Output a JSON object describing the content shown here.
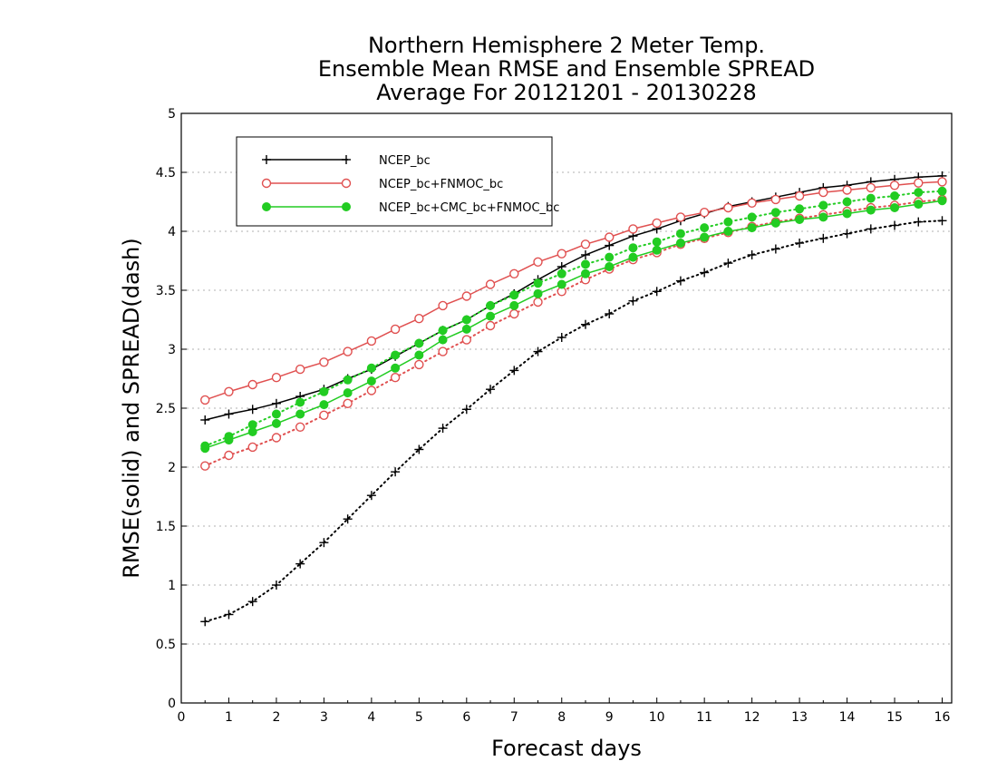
{
  "chart_data": {
    "type": "line",
    "title": [
      "Northern Hemisphere 2 Meter Temp.",
      "Ensemble Mean RMSE and Ensemble SPREAD",
      "Average For 20121201 - 20130228"
    ],
    "xlabel": "Forecast days",
    "ylabel": "RMSE(solid) and SPREAD(dash)",
    "xlim": [
      0,
      16.2
    ],
    "ylim": [
      0,
      5
    ],
    "xticks": [
      "0",
      "1",
      "2",
      "3",
      "4",
      "5",
      "6",
      "7",
      "8",
      "9",
      "10",
      "11",
      "12",
      "13",
      "14",
      "15",
      "16"
    ],
    "yticks": [
      "0",
      "0.5",
      "1",
      "1.5",
      "2",
      "2.5",
      "3",
      "3.5",
      "4",
      "4.5",
      "5"
    ],
    "grid": "horizontal dotted",
    "legend_position": "upper-left",
    "x": [
      0.5,
      1,
      1.5,
      2,
      2.5,
      3,
      3.5,
      4,
      4.5,
      5,
      5.5,
      6,
      6.5,
      7,
      7.5,
      8,
      8.5,
      9,
      9.5,
      10,
      10.5,
      11,
      11.5,
      12,
      12.5,
      13,
      13.5,
      14,
      14.5,
      15,
      15.5,
      16
    ],
    "series": [
      {
        "name": "NCEP_bc",
        "color": "#000000",
        "marker": "plus",
        "style": "solid",
        "kind": "RMSE",
        "values": [
          2.4,
          2.45,
          2.49,
          2.54,
          2.6,
          2.66,
          2.75,
          2.83,
          2.94,
          3.05,
          3.16,
          3.25,
          3.37,
          3.47,
          3.59,
          3.7,
          3.8,
          3.88,
          3.96,
          4.02,
          4.09,
          4.15,
          4.21,
          4.25,
          4.29,
          4.33,
          4.37,
          4.39,
          4.42,
          4.44,
          4.46,
          4.47
        ]
      },
      {
        "name": "NCEP_bc",
        "color": "#000000",
        "marker": "plus",
        "style": "dotted",
        "kind": "SPREAD",
        "values": [
          0.69,
          0.75,
          0.86,
          1.0,
          1.18,
          1.36,
          1.56,
          1.76,
          1.96,
          2.15,
          2.33,
          2.49,
          2.66,
          2.82,
          2.98,
          3.1,
          3.21,
          3.3,
          3.41,
          3.49,
          3.58,
          3.65,
          3.73,
          3.8,
          3.85,
          3.9,
          3.94,
          3.98,
          4.02,
          4.05,
          4.08,
          4.09
        ]
      },
      {
        "name": "NCEP_bc+FNMOC_bc",
        "color": "#e05050",
        "marker": "open-circle",
        "style": "solid",
        "kind": "RMSE",
        "values": [
          2.57,
          2.64,
          2.7,
          2.76,
          2.83,
          2.89,
          2.98,
          3.07,
          3.17,
          3.26,
          3.37,
          3.45,
          3.55,
          3.64,
          3.74,
          3.81,
          3.89,
          3.95,
          4.02,
          4.07,
          4.12,
          4.16,
          4.2,
          4.24,
          4.27,
          4.3,
          4.33,
          4.35,
          4.37,
          4.39,
          4.41,
          4.42
        ]
      },
      {
        "name": "NCEP_bc+FNMOC_bc",
        "color": "#e05050",
        "marker": "open-circle",
        "style": "dotted",
        "kind": "SPREAD",
        "values": [
          2.01,
          2.1,
          2.17,
          2.25,
          2.34,
          2.44,
          2.54,
          2.65,
          2.76,
          2.87,
          2.98,
          3.08,
          3.2,
          3.3,
          3.4,
          3.49,
          3.59,
          3.68,
          3.76,
          3.82,
          3.89,
          3.94,
          3.99,
          4.04,
          4.08,
          4.11,
          4.14,
          4.17,
          4.2,
          4.22,
          4.25,
          4.27
        ]
      },
      {
        "name": "NCEP_bc+CMC_bc+FNMOC_bc",
        "color": "#22cc22",
        "marker": "filled-circle",
        "style": "solid",
        "kind": "RMSE",
        "values": [
          2.16,
          2.23,
          2.3,
          2.37,
          2.45,
          2.53,
          2.63,
          2.73,
          2.84,
          2.95,
          3.08,
          3.17,
          3.28,
          3.37,
          3.47,
          3.55,
          3.64,
          3.7,
          3.78,
          3.84,
          3.9,
          3.95,
          4.0,
          4.03,
          4.07,
          4.1,
          4.12,
          4.15,
          4.18,
          4.2,
          4.23,
          4.26
        ]
      },
      {
        "name": "NCEP_bc+CMC_bc+FNMOC_bc",
        "color": "#22cc22",
        "marker": "filled-circle",
        "style": "dotted",
        "kind": "SPREAD",
        "values": [
          2.18,
          2.26,
          2.36,
          2.45,
          2.55,
          2.64,
          2.74,
          2.84,
          2.95,
          3.05,
          3.16,
          3.25,
          3.37,
          3.46,
          3.56,
          3.64,
          3.72,
          3.78,
          3.86,
          3.91,
          3.98,
          4.03,
          4.08,
          4.12,
          4.16,
          4.19,
          4.22,
          4.25,
          4.28,
          4.3,
          4.33,
          4.34
        ]
      }
    ],
    "legend": [
      {
        "label": "NCEP_bc",
        "color": "#000000",
        "marker": "plus"
      },
      {
        "label": "NCEP_bc+FNMOC_bc",
        "color": "#e05050",
        "marker": "open-circle"
      },
      {
        "label": "NCEP_bc+CMC_bc+FNMOC_bc",
        "color": "#22cc22",
        "marker": "filled-circle"
      }
    ]
  }
}
